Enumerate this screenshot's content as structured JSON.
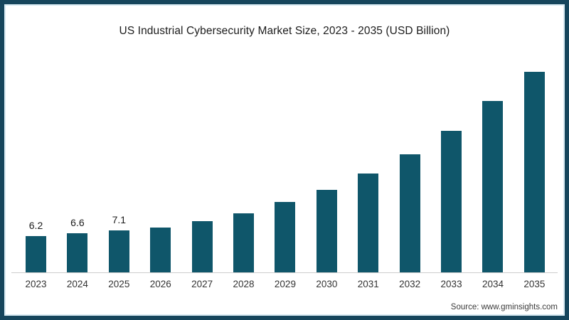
{
  "frame": {
    "border_color": "#16455c",
    "inner_line_color": "#d9ebf3",
    "background": "#ffffff"
  },
  "footer": {
    "source": "Source: www.gminsights.com"
  },
  "chart_data": {
    "type": "bar",
    "title": "US Industrial Cybersecurity Market Size, 2023 - 2035 (USD Billion)",
    "categories": [
      "2023",
      "2024",
      "2025",
      "2026",
      "2027",
      "2028",
      "2029",
      "2030",
      "2031",
      "2032",
      "2033",
      "2034",
      "2035"
    ],
    "values": [
      6.2,
      6.6,
      7.1,
      7.6,
      8.7,
      10.0,
      11.9,
      14.0,
      16.8,
      20.0,
      24.0,
      29.1,
      34.1
    ],
    "value_labels": [
      "6.2",
      "6.6",
      "7.1",
      "",
      "",
      "",
      "",
      "",
      "",
      "",
      "",
      "",
      ""
    ],
    "xlabel": "",
    "ylabel": "",
    "ylim": [
      0,
      36
    ],
    "grid": false,
    "legend": "none",
    "bar_color": "#0f566a",
    "axis_line_color": "#cccccc",
    "label_color": "#1b1b1b",
    "tick_label_color": "#333333"
  }
}
